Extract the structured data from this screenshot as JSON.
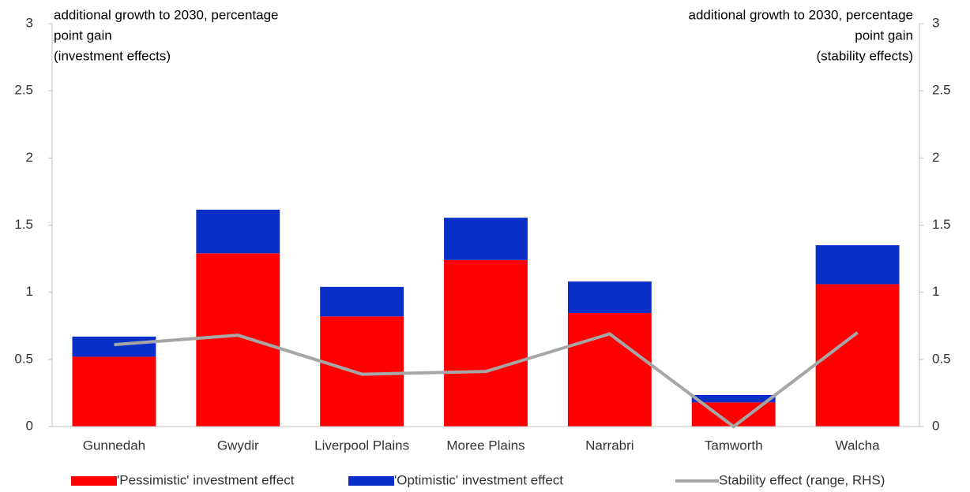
{
  "chart_data": {
    "type": "bar",
    "stacked": true,
    "y_label": [
      "additional growth to 2030, percentage",
      "point gain",
      "(investment effects)"
    ],
    "y2_label": [
      "additional growth to 2030, percentage",
      "point gain",
      "(stability effects)"
    ],
    "categories": [
      "Gunnedah",
      "Gwydir",
      "Liverpool Plains",
      "Moree Plains",
      "Narrabri",
      "Tamworth",
      "Walcha"
    ],
    "series": [
      {
        "name": "'Pessimistic' investment effect",
        "type": "bar",
        "color": "#ff0000",
        "values": [
          0.52,
          1.29,
          0.82,
          1.24,
          0.845,
          0.18,
          1.06
        ]
      },
      {
        "name": "'Optimistic' investment effect",
        "type": "bar",
        "color": "#0a2ec8",
        "values": [
          0.15,
          0.325,
          0.22,
          0.315,
          0.235,
          0.055,
          0.29
        ]
      },
      {
        "name": "Stability effect (range, RHS)",
        "type": "line",
        "axis": "y2",
        "color": "#a6a6a6",
        "values": [
          0.61,
          0.68,
          0.39,
          0.41,
          0.69,
          0,
          0.7
        ]
      }
    ],
    "ylim": [
      0,
      3
    ],
    "yticks": [
      0,
      0.5,
      1,
      1.5,
      2,
      2.5,
      3
    ],
    "y2lim": [
      0,
      3
    ],
    "y2ticks": [
      0,
      0.5,
      1,
      1.5,
      2,
      2.5,
      3
    ],
    "grid": false,
    "legend": "bottom"
  }
}
